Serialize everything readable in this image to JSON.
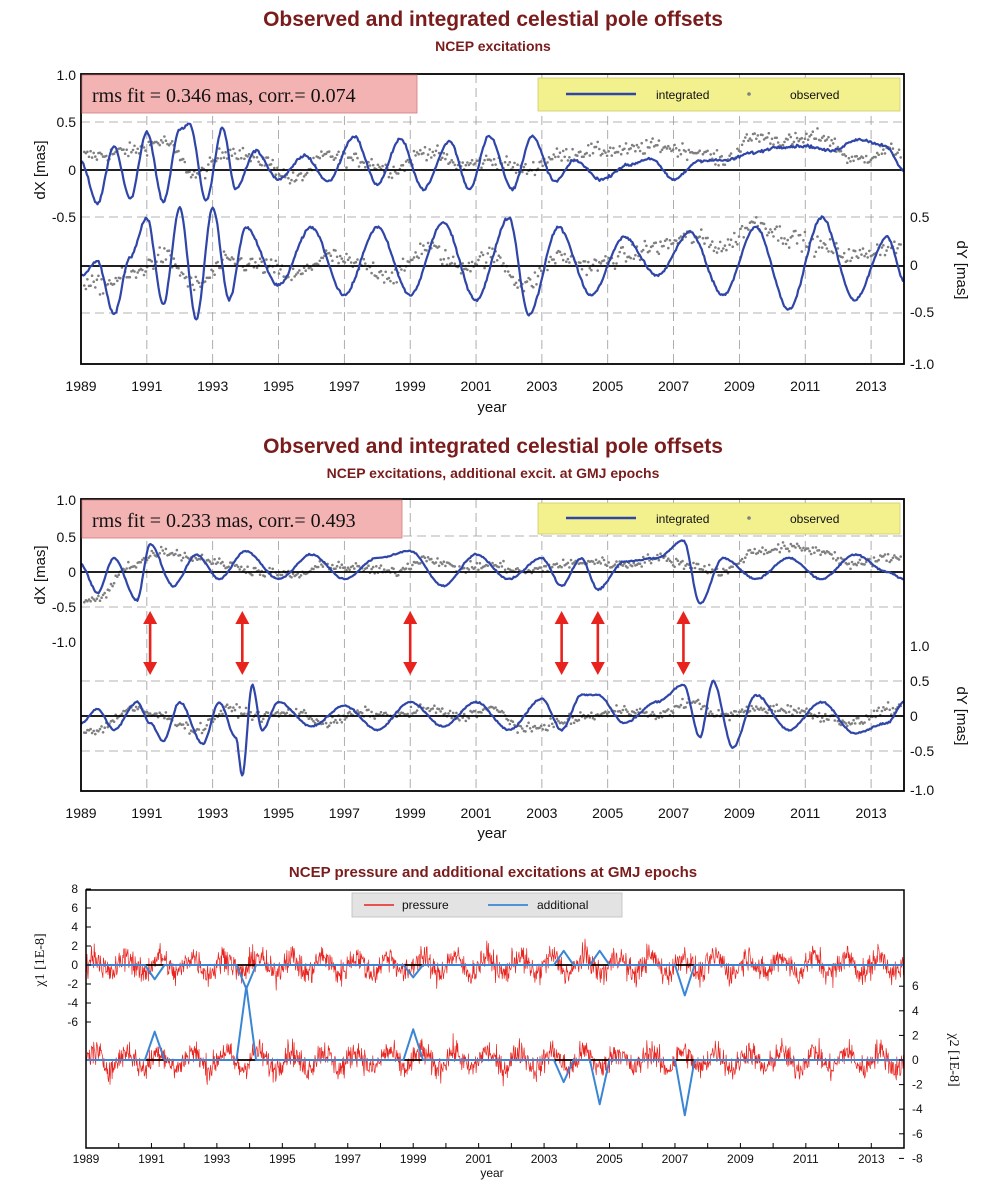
{
  "colors": {
    "title": "#7a1c1c",
    "integrated": "#2f46a8",
    "observed": "#7f7f7f",
    "pressure": "#e8231e",
    "additional": "#3a86d4",
    "arrow": "#e8231e",
    "rms_box": "#f4b3b3",
    "legend_box": "#f3f08e",
    "legend3_box": "#e3e3e3"
  },
  "panels": [
    {
      "title": "Observed and integrated celestial pole offsets",
      "subtitle": "NCEP excitations",
      "rms_text": "rms fit = 0.346 mas, corr.= 0.074",
      "legend": {
        "integrated": "integrated",
        "observed": "observed"
      },
      "left_axis_label": "dX [mas]",
      "left_ticks": [
        "1.0",
        "0.5",
        "0",
        "-0.5"
      ],
      "right_axis_label": "dY [mas]",
      "right_ticks": [
        "0.5",
        "0",
        "-0.5",
        "-1.0"
      ],
      "xlabel": "year"
    },
    {
      "title": "Observed and integrated celestial pole offsets",
      "subtitle": "NCEP  excitations, additional excit. at GMJ epochs",
      "rms_text": "rms fit = 0.233 mas, corr.= 0.493",
      "legend": {
        "integrated": "integrated",
        "observed": "observed"
      },
      "left_axis_label": "dX [mas]",
      "left_ticks": [
        "1.0",
        "0.5",
        "0",
        "-0.5",
        "-1.0"
      ],
      "right_axis_label": "dY [mas]",
      "right_ticks": [
        "1.0",
        "0.5",
        "0",
        "-0.5",
        "-1.0"
      ],
      "xlabel": "year",
      "gmj_epochs": [
        1991.1,
        1993.9,
        1999.0,
        2003.6,
        2004.7,
        2007.3
      ]
    },
    {
      "title": "NCEP pressure and additional excitations at GMJ epochs",
      "legend": {
        "pressure": "pressure",
        "additional": "additional"
      },
      "left_axis_label": "χ1 [1E-8]",
      "left_ticks": [
        "8",
        "6",
        "4",
        "2",
        "0",
        "-2",
        "-4",
        "-6"
      ],
      "right_axis_label": "χ2 [1E-8]",
      "right_ticks": [
        "6",
        "4",
        "2",
        "0",
        "-2",
        "-4",
        "-6",
        "-8"
      ],
      "xlabel": "year"
    }
  ],
  "x_tick_labels": [
    "1989",
    "1991",
    "1993",
    "1995",
    "1997",
    "1999",
    "2001",
    "2003",
    "2005",
    "2007",
    "2009",
    "2011",
    "2013"
  ],
  "chart_data": [
    {
      "type": "line",
      "title": "Observed and integrated celestial pole offsets",
      "subtitle": "NCEP excitations",
      "xlabel": "year",
      "xlim": [
        1989,
        2014
      ],
      "series": [
        {
          "name": "integrated",
          "component": "dX",
          "axis": "left",
          "ylim": [
            -1.0,
            1.0
          ],
          "x": [
            1989.0,
            1989.5,
            1990.0,
            1990.5,
            1991.0,
            1991.5,
            1992.0,
            1992.3,
            1992.8,
            1993.3,
            1993.7,
            1994.3,
            1995.0,
            1995.8,
            1996.5,
            1997.3,
            1998.0,
            1998.7,
            1999.4,
            2000.2,
            2000.8,
            2001.4,
            2002.1,
            2002.7,
            2003.4,
            2004.0,
            2004.8,
            2005.6,
            2006.3,
            2007.0,
            2007.8,
            2008.6,
            2009.4,
            2010.2,
            2011.0,
            2011.8,
            2012.6,
            2013.4,
            2014.0
          ],
          "y": [
            0.08,
            -0.35,
            0.25,
            -0.3,
            0.4,
            -0.33,
            0.42,
            0.48,
            -0.32,
            0.44,
            -0.2,
            0.2,
            -0.1,
            0.15,
            -0.12,
            0.35,
            -0.15,
            0.32,
            -0.2,
            0.3,
            -0.2,
            0.36,
            -0.2,
            0.35,
            -0.12,
            0.1,
            -0.1,
            0.05,
            0.12,
            -0.1,
            0.1,
            0.1,
            0.18,
            0.24,
            0.25,
            0.2,
            0.32,
            0.26,
            0.0
          ]
        },
        {
          "name": "observed",
          "component": "dX",
          "axis": "left",
          "ylim": [
            -1.0,
            1.0
          ],
          "x": [
            1989.5,
            1990.5,
            1991.5,
            1992.5,
            1993.5,
            1994.5,
            1995.5,
            1996.5,
            1997.5,
            1998.5,
            1999.5,
            2000.5,
            2001.5,
            2002.5,
            2003.5,
            2004.5,
            2005.5,
            2006.5,
            2007.5,
            2008.5,
            2009.5,
            2010.5,
            2011.5,
            2012.5,
            2013.5
          ],
          "y": [
            0.15,
            0.2,
            0.3,
            -0.05,
            0.2,
            0.1,
            -0.1,
            0.15,
            0.1,
            0.0,
            0.2,
            0.05,
            0.1,
            0.0,
            0.15,
            0.2,
            0.2,
            0.25,
            0.2,
            0.1,
            0.35,
            0.3,
            0.35,
            0.1,
            0.2
          ]
        },
        {
          "name": "integrated",
          "component": "dY",
          "axis": "right",
          "ylim": [
            -1.0,
            0.9
          ],
          "x": [
            1989.0,
            1989.5,
            1990.0,
            1990.5,
            1991.0,
            1991.5,
            1992.0,
            1992.5,
            1993.0,
            1993.5,
            1994.0,
            1995.0,
            1996.0,
            1997.0,
            1998.0,
            1999.0,
            2000.0,
            2001.0,
            2002.0,
            2002.6,
            2003.5,
            2004.5,
            2005.5,
            2006.5,
            2007.5,
            2008.5,
            2009.5,
            2010.5,
            2011.5,
            2012.5,
            2013.5,
            2014.0
          ],
          "y": [
            -0.1,
            0.05,
            -0.5,
            0.1,
            0.5,
            -0.4,
            0.6,
            -0.55,
            0.6,
            -0.35,
            0.4,
            -0.2,
            0.4,
            -0.3,
            0.4,
            -0.3,
            0.45,
            -0.35,
            0.5,
            -0.5,
            0.4,
            -0.3,
            0.3,
            -0.1,
            0.35,
            -0.3,
            0.4,
            -0.45,
            0.5,
            -0.35,
            0.3,
            -0.15
          ]
        },
        {
          "name": "observed",
          "component": "dY",
          "axis": "right",
          "ylim": [
            -1.0,
            0.9
          ],
          "x": [
            1989.5,
            1990.5,
            1991.5,
            1992.5,
            1993.5,
            1994.5,
            1995.5,
            1996.5,
            1997.5,
            1998.5,
            1999.5,
            2000.5,
            2001.5,
            2002.5,
            2003.5,
            2004.5,
            2005.5,
            2006.5,
            2007.5,
            2008.5,
            2009.5,
            2010.5,
            2011.5,
            2012.5,
            2013.5
          ],
          "y": [
            -0.2,
            -0.1,
            0.1,
            -0.2,
            0.05,
            0.0,
            -0.1,
            0.1,
            0.0,
            -0.1,
            0.2,
            0.0,
            0.1,
            -0.2,
            0.1,
            0.0,
            0.1,
            0.2,
            0.3,
            0.2,
            0.45,
            0.3,
            0.2,
            0.1,
            0.2
          ]
        }
      ]
    },
    {
      "type": "line",
      "title": "Observed and integrated celestial pole offsets",
      "subtitle": "NCEP  excitations, additional excit. at GMJ epochs",
      "xlabel": "year",
      "xlim": [
        1989,
        2014
      ],
      "series": [
        {
          "name": "integrated",
          "component": "dX",
          "axis": "left",
          "ylim": [
            -1.5,
            1.0
          ],
          "x": [
            1989.0,
            1989.5,
            1990.0,
            1990.7,
            1991.1,
            1991.8,
            1992.5,
            1993.2,
            1994.0,
            1995.0,
            1996.0,
            1997.0,
            1998.0,
            1999.0,
            2000.0,
            2001.0,
            2002.0,
            2003.0,
            2003.6,
            2004.2,
            2004.7,
            2005.5,
            2006.5,
            2007.3,
            2007.8,
            2008.5,
            2009.5,
            2010.5,
            2011.5,
            2012.5,
            2013.5,
            2014.0
          ],
          "y": [
            0.1,
            -0.3,
            0.2,
            -0.4,
            0.4,
            -0.2,
            0.25,
            -0.1,
            0.3,
            -0.1,
            0.25,
            -0.1,
            0.2,
            0.3,
            -0.2,
            0.25,
            -0.1,
            0.2,
            -0.2,
            0.2,
            -0.25,
            0.15,
            0.2,
            0.45,
            -0.45,
            0.2,
            -0.1,
            0.2,
            -0.1,
            0.25,
            0.0,
            -0.1
          ]
        },
        {
          "name": "observed",
          "component": "dX",
          "axis": "left",
          "ylim": [
            -1.5,
            1.0
          ],
          "x": [
            1989.5,
            1990.5,
            1991.5,
            1992.5,
            1993.5,
            1994.5,
            1995.5,
            1996.5,
            1997.5,
            1998.5,
            1999.5,
            2000.5,
            2001.5,
            2002.5,
            2003.5,
            2004.5,
            2005.5,
            2006.5,
            2007.5,
            2008.5,
            2009.5,
            2010.5,
            2011.5,
            2012.5,
            2013.5
          ],
          "y": [
            -0.4,
            0.1,
            0.3,
            0.2,
            0.1,
            0.0,
            -0.05,
            0.1,
            0.05,
            0.0,
            0.2,
            0.05,
            0.1,
            0.0,
            0.1,
            0.15,
            0.1,
            0.2,
            0.1,
            0.0,
            0.3,
            0.35,
            0.3,
            0.1,
            0.2
          ]
        },
        {
          "name": "integrated",
          "component": "dY",
          "axis": "right",
          "ylim": [
            -1.0,
            1.4
          ],
          "x": [
            1989.0,
            1989.5,
            1990.0,
            1990.7,
            1991.1,
            1991.5,
            1992.0,
            1992.7,
            1993.2,
            1993.7,
            1993.9,
            1994.2,
            1994.5,
            1995.0,
            1996.0,
            1997.0,
            1998.0,
            1999.0,
            2000.0,
            2001.0,
            2002.0,
            2003.0,
            2003.6,
            2004.2,
            2004.7,
            2005.5,
            2006.5,
            2007.3,
            2007.8,
            2008.2,
            2008.8,
            2009.5,
            2010.5,
            2011.5,
            2012.5,
            2013.5,
            2014.0
          ],
          "y": [
            -0.1,
            0.1,
            -0.2,
            0.2,
            -0.1,
            -0.35,
            0.2,
            -0.4,
            0.2,
            -0.3,
            -0.85,
            0.45,
            -0.2,
            0.2,
            -0.15,
            0.15,
            -0.2,
            0.2,
            -0.15,
            0.2,
            -0.2,
            0.25,
            -0.2,
            0.3,
            0.3,
            -0.1,
            0.2,
            0.45,
            -0.3,
            0.5,
            -0.45,
            0.3,
            -0.2,
            0.2,
            -0.25,
            -0.1,
            0.2
          ]
        },
        {
          "name": "observed",
          "component": "dY",
          "axis": "right",
          "ylim": [
            -1.0,
            1.4
          ],
          "x": [
            1989.5,
            1990.5,
            1991.5,
            1992.5,
            1993.5,
            1994.5,
            1995.5,
            1996.5,
            1997.5,
            1998.5,
            1999.5,
            2000.5,
            2001.5,
            2002.5,
            2003.5,
            2004.5,
            2005.5,
            2006.5,
            2007.5,
            2008.5,
            2009.5,
            2010.5,
            2011.5,
            2012.5,
            2013.5
          ],
          "y": [
            -0.2,
            0.1,
            0.0,
            -0.2,
            0.1,
            0.0,
            0.05,
            -0.1,
            0.05,
            0.0,
            0.1,
            0.0,
            0.1,
            -0.2,
            -0.1,
            0.0,
            0.1,
            0.0,
            0.2,
            0.0,
            0.1,
            0.1,
            0.0,
            -0.1,
            0.1
          ]
        }
      ],
      "annotations": [
        {
          "type": "double-arrow",
          "x": 1991.1
        },
        {
          "type": "double-arrow",
          "x": 1993.9
        },
        {
          "type": "double-arrow",
          "x": 1999.0
        },
        {
          "type": "double-arrow",
          "x": 2003.6
        },
        {
          "type": "double-arrow",
          "x": 2004.7
        },
        {
          "type": "double-arrow",
          "x": 2007.3
        }
      ]
    },
    {
      "type": "line",
      "title": "NCEP pressure and additional excitations at GMJ epochs",
      "xlabel": "year",
      "xlim": [
        1989,
        2014
      ],
      "series": [
        {
          "name": "pressure",
          "component": "χ1",
          "axis": "left",
          "ylim": [
            -9,
            8
          ],
          "amplitude_range": [
            -6,
            6
          ]
        },
        {
          "name": "additional",
          "component": "χ1",
          "axis": "left",
          "ylim": [
            -9,
            8
          ],
          "x": [
            1989.0,
            1990.8,
            1991.1,
            1991.4,
            1993.6,
            1993.9,
            1994.2,
            1998.7,
            1999.0,
            1999.3,
            2003.3,
            2003.6,
            2003.9,
            2004.4,
            2004.7,
            2005.0,
            2007.0,
            2007.3,
            2007.6,
            2014.0
          ],
          "y": [
            0,
            0,
            -1.5,
            0,
            0,
            -2.5,
            0,
            0,
            -1.3,
            0,
            0,
            1.5,
            0,
            0,
            1.5,
            0,
            0,
            -3.2,
            0,
            0
          ]
        },
        {
          "name": "pressure",
          "component": "χ2",
          "axis": "right",
          "ylim": [
            -8,
            8
          ],
          "amplitude_range": [
            -6,
            6
          ]
        },
        {
          "name": "additional",
          "component": "χ2",
          "axis": "right",
          "ylim": [
            -8,
            8
          ],
          "x": [
            1989.0,
            1990.8,
            1991.1,
            1991.4,
            1993.6,
            1993.9,
            1994.2,
            1998.7,
            1999.0,
            1999.3,
            2003.3,
            2003.6,
            2003.9,
            2004.4,
            2004.7,
            2005.0,
            2007.0,
            2007.3,
            2007.6,
            2014.0
          ],
          "y": [
            0,
            0,
            2.3,
            0,
            0,
            6.0,
            0,
            0,
            2.5,
            0,
            0,
            -1.8,
            0,
            0,
            -3.6,
            0,
            0,
            -4.5,
            0,
            0
          ]
        }
      ]
    }
  ]
}
